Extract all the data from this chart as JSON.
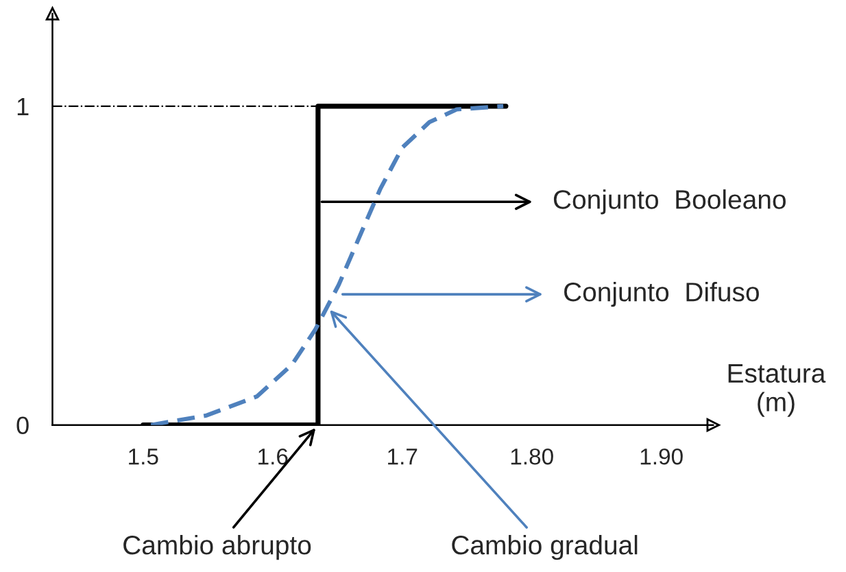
{
  "chart_data": {
    "type": "line",
    "xlabel": "Estatura\n(m)",
    "xlim": [
      1.43,
      1.94
    ],
    "ylim": [
      0,
      1.29
    ],
    "xticks": [
      1.5,
      1.6,
      1.7,
      {
        "value": 1.8,
        "label": "1.80"
      },
      {
        "value": 1.9,
        "label": "1.90"
      }
    ],
    "yticks": [
      0,
      1
    ],
    "series": [
      {
        "color": "#000000",
        "line_style": "solid",
        "x": [
          1.5,
          1.635,
          1.635,
          1.78
        ],
        "values": [
          0,
          0,
          1,
          1
        ]
      },
      {
        "color": "#4f81bd",
        "line_style": "dashed",
        "x": [
          1.506,
          1.549,
          1.588,
          1.615,
          1.633,
          1.642,
          1.651,
          1.668,
          1.683,
          1.7,
          1.721,
          1.742,
          1.778
        ],
        "values": [
          0,
          0.03,
          0.09,
          0.19,
          0.3,
          0.37,
          0.44,
          0.6,
          0.74,
          0.87,
          0.95,
          0.99,
          1
        ]
      }
    ],
    "ref_lines": [
      {
        "axis": "y",
        "value": 1,
        "color": "#000000",
        "line_style": "dashdot"
      }
    ],
    "annotations": [
      {
        "text": "Conjunto  Booleano",
        "x": 1.635,
        "y": 0.7
      },
      {
        "text": "Conjunto  Difuso",
        "x": 1.651,
        "y": 0.41
      },
      {
        "text": "Cambio gradual",
        "x": 1.642,
        "y": 0.37
      },
      {
        "text": "Cambio abrupto",
        "x": 1.635,
        "y": 0
      }
    ],
    "grid": false,
    "legend": false
  }
}
